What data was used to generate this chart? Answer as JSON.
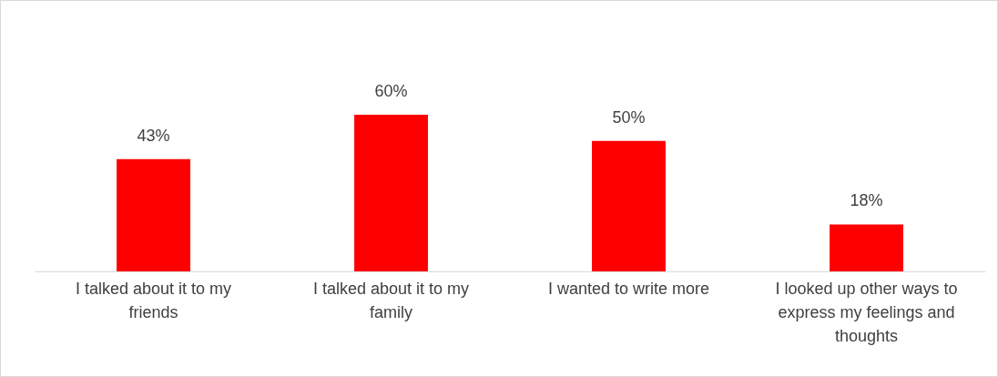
{
  "chart_data": {
    "type": "bar",
    "categories": [
      "I talked about it to my friends",
      "I talked about it to my family",
      "I wanted to write more",
      "I looked up other ways to express my feelings and thoughts"
    ],
    "values": [
      43,
      60,
      50,
      18
    ],
    "value_labels": [
      "43%",
      "60%",
      "50%",
      "18%"
    ],
    "color": "#ff0000"
  }
}
